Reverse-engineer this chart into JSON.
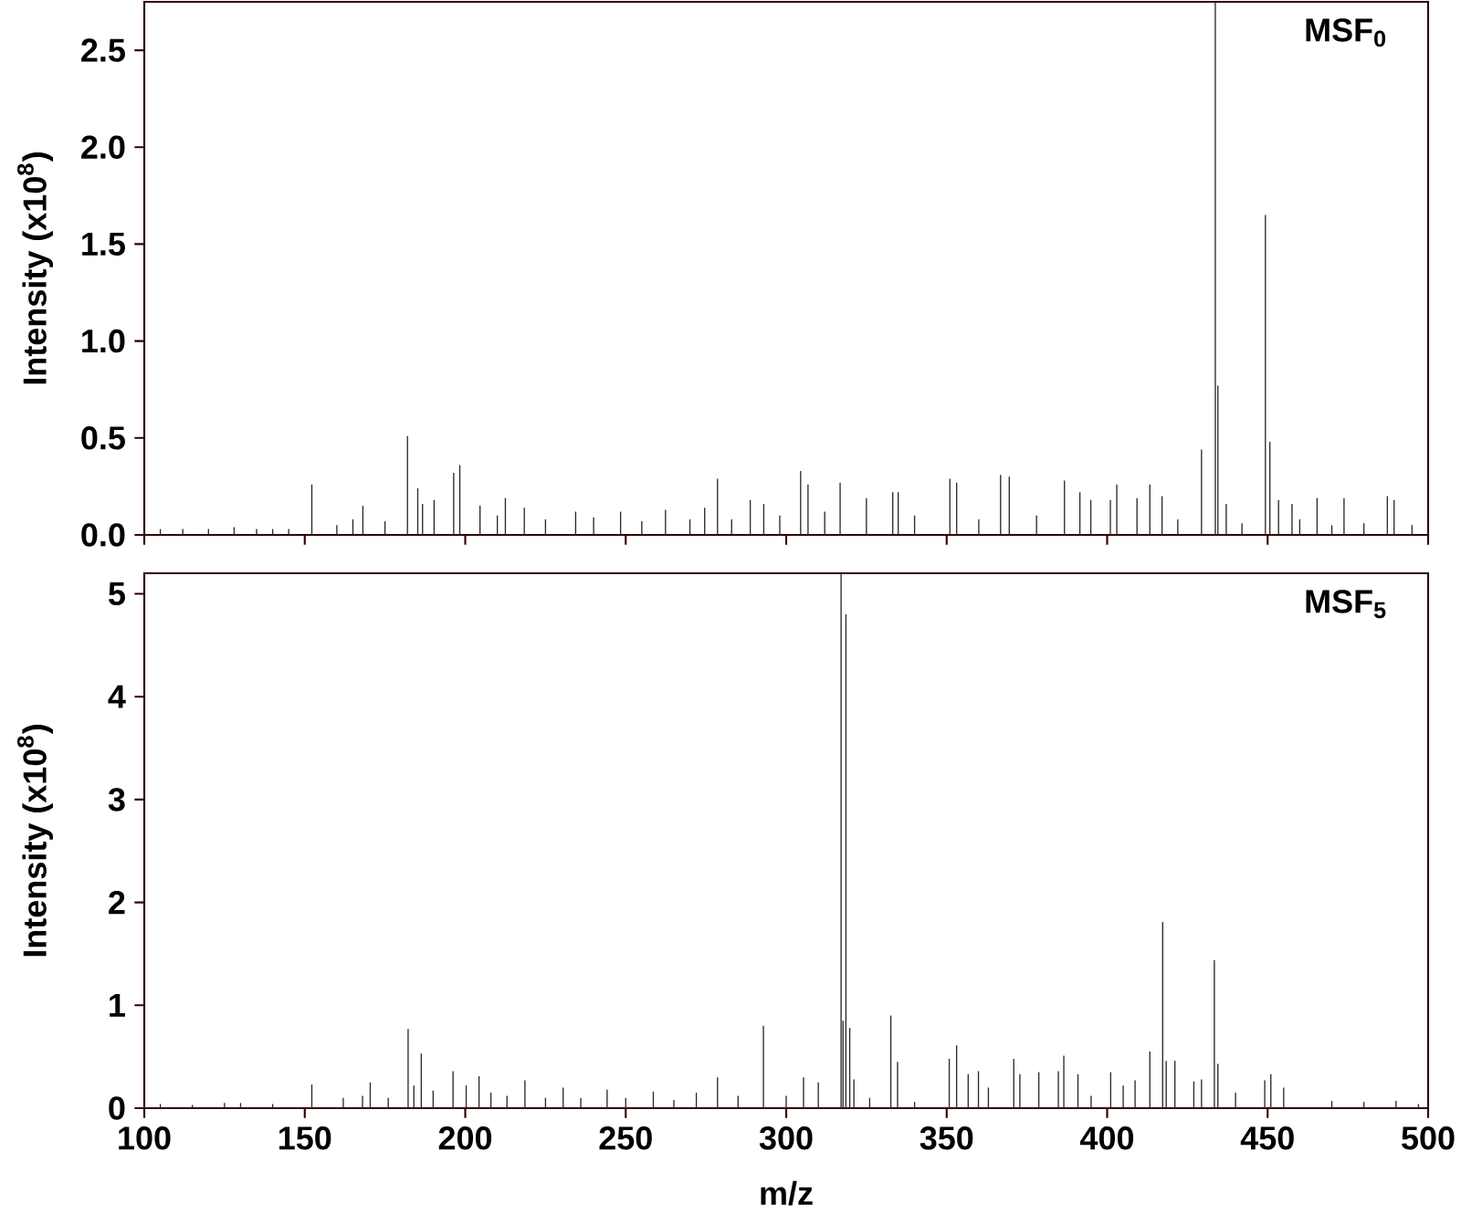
{
  "chart_data": [
    {
      "type": "bar",
      "ylabel": "Intensity (x10$^{8}$)",
      "annotations": [
        "MSF$_{0}$"
      ],
      "color": "#2e2626",
      "tick_labels": "y",
      "xlim": [
        100,
        500
      ],
      "xticks": [
        100,
        150,
        200,
        250,
        300,
        350,
        400,
        450,
        500
      ],
      "ylim": [
        0,
        2.75
      ],
      "yticks": [
        {
          "value": 0,
          "label": "0.0"
        },
        {
          "value": 0.5,
          "label": "0.5"
        },
        {
          "value": 1,
          "label": "1.0"
        },
        {
          "value": 1.5,
          "label": "1.5"
        },
        {
          "value": 2,
          "label": "2.0"
        },
        {
          "value": 2.5,
          "label": "2.5"
        }
      ],
      "x": [
        105,
        112,
        120,
        128,
        135,
        140,
        145,
        152.2,
        160,
        165,
        168.1,
        175,
        182,
        185.2,
        186.7,
        190.3,
        196.4,
        198.3,
        204.6,
        210,
        212.5,
        218.4,
        225,
        234.4,
        240,
        248.4,
        255,
        262.4,
        270,
        274.6,
        278.6,
        283,
        288.8,
        293,
        298,
        304.5,
        306.8,
        312,
        316.8,
        325,
        333.2,
        334.9,
        340,
        351,
        353.1,
        360,
        366.8,
        369.5,
        378,
        386.7,
        391.5,
        394.9,
        401,
        403,
        409.3,
        413.3,
        417.1,
        422,
        429.4,
        433.7,
        434.5,
        437.1,
        442,
        449.3,
        450.7,
        453.4,
        457.6,
        460,
        465.4,
        470,
        473.8,
        480,
        487.3,
        489.4,
        495
      ],
      "values": [
        0.03,
        0.03,
        0.03,
        0.04,
        0.03,
        0.03,
        0.03,
        0.26,
        0.05,
        0.08,
        0.15,
        0.07,
        0.51,
        0.24,
        0.16,
        0.18,
        0.32,
        0.36,
        0.15,
        0.1,
        0.19,
        0.14,
        0.08,
        0.12,
        0.09,
        0.12,
        0.07,
        0.13,
        0.08,
        0.14,
        0.29,
        0.08,
        0.18,
        0.16,
        0.1,
        0.33,
        0.26,
        0.12,
        0.27,
        0.19,
        0.22,
        0.22,
        0.1,
        0.29,
        0.27,
        0.08,
        0.31,
        0.3,
        0.1,
        0.28,
        0.22,
        0.18,
        0.18,
        0.26,
        0.19,
        0.26,
        0.2,
        0.08,
        0.44,
        2.75,
        0.77,
        0.16,
        0.06,
        1.65,
        0.48,
        0.18,
        0.16,
        0.08,
        0.19,
        0.05,
        0.19,
        0.06,
        0.2,
        0.18,
        0.05
      ]
    },
    {
      "type": "bar",
      "xlabel": "m/z",
      "ylabel": "Intensity (x10$^{8}$)",
      "annotations": [
        "MSF$_{5}$"
      ],
      "color": "#2e2626",
      "xlim": [
        100,
        500
      ],
      "xticks": [
        100,
        150,
        200,
        250,
        300,
        350,
        400,
        450,
        500
      ],
      "ylim": [
        0,
        5.2
      ],
      "yticks": [
        0,
        1,
        2,
        3,
        4,
        5
      ],
      "x": [
        105,
        115,
        125,
        130,
        140,
        152.2,
        162,
        168,
        170.4,
        176,
        182.2,
        184,
        186.3,
        190,
        196.2,
        200.3,
        204.3,
        208,
        213,
        218.6,
        225,
        230.5,
        236,
        244.2,
        250,
        258.6,
        265,
        272,
        278.6,
        285,
        292.9,
        300,
        305.4,
        310,
        317.1,
        317.7,
        318.6,
        319.8,
        321.1,
        326,
        332.6,
        334.7,
        340,
        350.8,
        353.1,
        356.7,
        359.9,
        363,
        370.9,
        372.8,
        378.7,
        384.8,
        386.5,
        390.9,
        395,
        401.1,
        405,
        408.7,
        413.3,
        417.3,
        418.4,
        421.1,
        427,
        429.4,
        433.4,
        434.5,
        440,
        449.1,
        451,
        455,
        470,
        480,
        490,
        497
      ],
      "values": [
        0.04,
        0.03,
        0.05,
        0.05,
        0.04,
        0.23,
        0.1,
        0.12,
        0.25,
        0.1,
        0.77,
        0.22,
        0.53,
        0.17,
        0.36,
        0.22,
        0.31,
        0.15,
        0.12,
        0.27,
        0.1,
        0.2,
        0.1,
        0.18,
        0.1,
        0.16,
        0.08,
        0.15,
        0.3,
        0.12,
        0.8,
        0.12,
        0.3,
        0.25,
        5.2,
        0.85,
        4.8,
        0.78,
        0.28,
        0.1,
        0.9,
        0.45,
        0.06,
        0.48,
        0.61,
        0.33,
        0.36,
        0.2,
        0.48,
        0.33,
        0.35,
        0.36,
        0.51,
        0.33,
        0.12,
        0.35,
        0.22,
        0.27,
        0.55,
        1.81,
        0.46,
        0.46,
        0.26,
        0.28,
        1.44,
        0.43,
        0.15,
        0.27,
        0.33,
        0.2,
        0.07,
        0.06,
        0.07,
        0.04
      ]
    }
  ]
}
